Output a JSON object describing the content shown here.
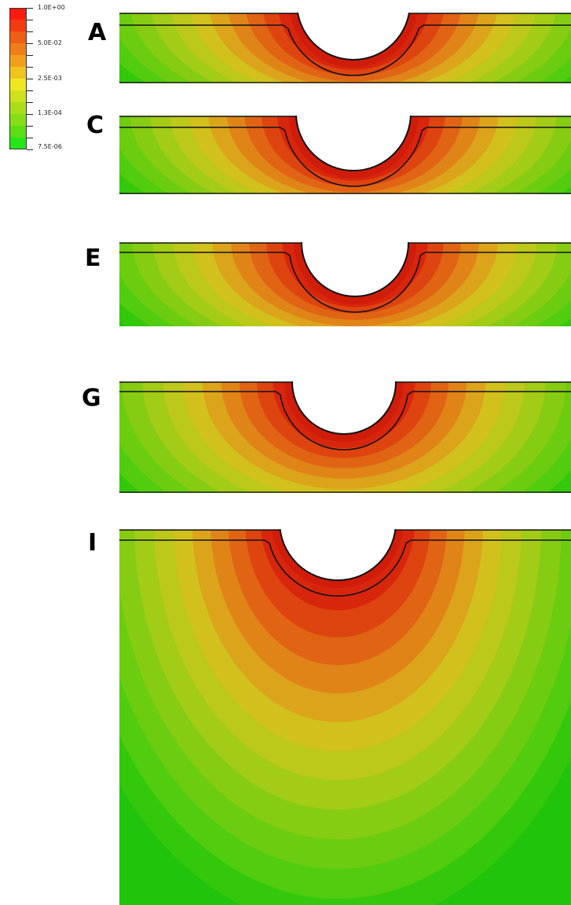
{
  "legend": {
    "colors": [
      "#ff1a10",
      "#f23b12",
      "#ee5e14",
      "#f07e18",
      "#f2a01c",
      "#f2c41e",
      "#eee820",
      "#cde21a",
      "#aadf18",
      "#86de16",
      "#5cdd14",
      "#22e81a"
    ],
    "labels": [
      "1.0E+00",
      "5.0E-02",
      "2.5E-03",
      "1.3E-04",
      "7.5E-06"
    ]
  },
  "contour_palette": [
    "#d8260c",
    "#de4410",
    "#e06414",
    "#e08418",
    "#dca41a",
    "#d2c01c",
    "#bcc81a",
    "#a2cc16",
    "#86cc12",
    "#6ccc10",
    "#52cc0e",
    "#34c80c",
    "#20c40c"
  ],
  "panels": [
    {
      "label": "A"
    },
    {
      "label": "C"
    },
    {
      "label": "E"
    },
    {
      "label": "G"
    },
    {
      "label": "I"
    }
  ]
}
